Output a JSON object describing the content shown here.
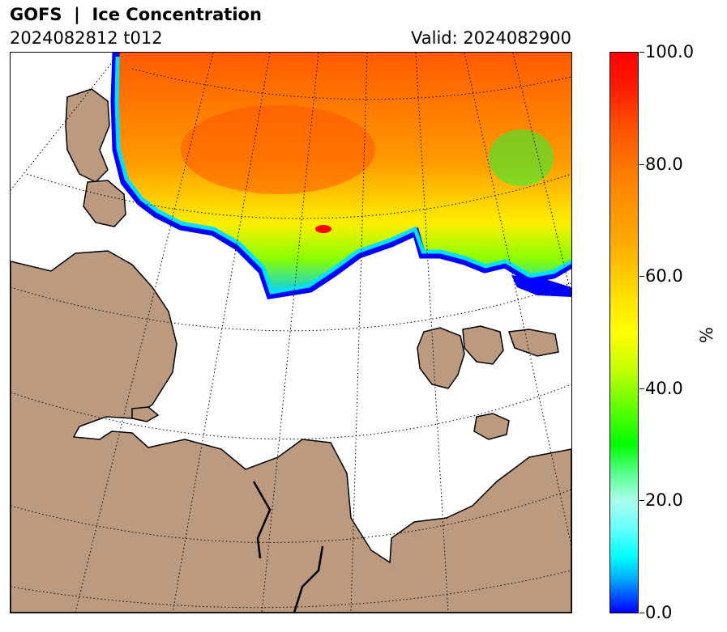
{
  "header": {
    "title": "GOFS  |  Ice Concentration",
    "run": "2024082812 t012",
    "valid": "Valid: 2024082900"
  },
  "colorbar": {
    "unit": "%",
    "ticks": [
      "0.0",
      "20.0",
      "40.0",
      "60.0",
      "80.0",
      "100.0"
    ],
    "colors": {
      "low": "#0000ff",
      "mid_low": "#00ffff",
      "mid": "#00ff00",
      "mid_high": "#ffff00",
      "high_mid": "#ff8800",
      "high": "#ff0000"
    }
  },
  "map": {
    "land_color": "#bc9a7f",
    "ocean_color": "#ffffff",
    "gridlines": "dotted"
  }
}
